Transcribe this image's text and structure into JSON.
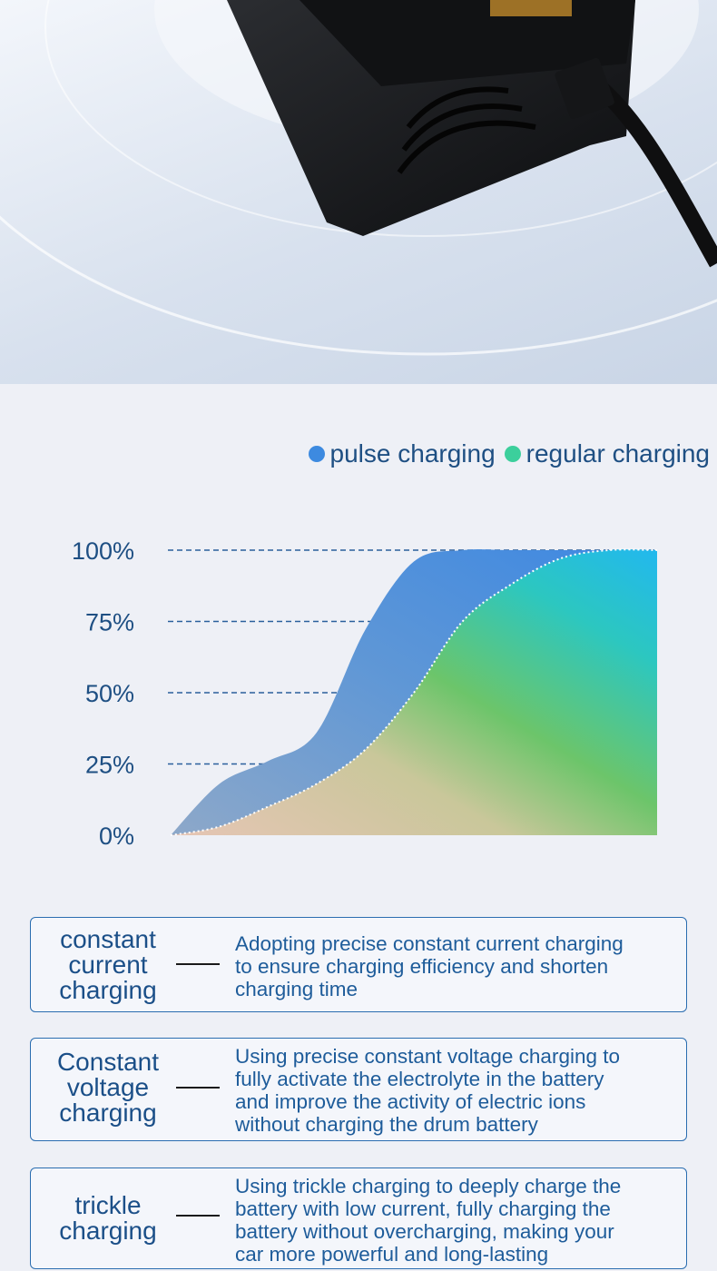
{
  "hero": {
    "image_label": "product-photo"
  },
  "legend": {
    "items": [
      {
        "label": "pulse charging",
        "color": "#3d8ae0"
      },
      {
        "label": "regular charging",
        "color": "#3ccf9c"
      }
    ]
  },
  "chart_data": {
    "type": "area",
    "title": "",
    "xlabel": "",
    "ylabel": "",
    "ylim": [
      0,
      100
    ],
    "yticks": [
      "0%",
      "25%",
      "50%",
      "75%",
      "100%"
    ],
    "tick_values": [
      0,
      25,
      50,
      75,
      100
    ],
    "grid": "dashed horizontal",
    "legend_position": "top-right",
    "x": [
      0,
      10,
      20,
      30,
      40,
      50,
      60,
      70,
      80,
      90,
      100
    ],
    "series": [
      {
        "name": "pulse charging",
        "values": [
          0,
          18,
          26,
          36,
          72,
          96,
          100,
          100,
          100,
          100,
          100
        ]
      },
      {
        "name": "regular charging",
        "values": [
          0,
          3,
          10,
          18,
          30,
          50,
          75,
          88,
          97,
          100,
          100
        ]
      }
    ]
  },
  "cards": [
    {
      "title_lines": [
        "constant",
        "current",
        "charging"
      ],
      "desc_lines": [
        "Adopting precise constant current charging",
        "to ensure charging efficiency and shorten",
        "charging time"
      ]
    },
    {
      "title_lines": [
        "Constant",
        "voltage",
        "charging"
      ],
      "desc_lines": [
        "Using precise constant voltage charging to",
        "fully activate the electrolyte in the battery",
        "and improve the activity of electric ions",
        "without charging the drum battery"
      ]
    },
    {
      "title_lines": [
        "trickle",
        "charging"
      ],
      "desc_lines": [
        "Using trickle charging to deeply charge the",
        "battery with low current, fully charging the",
        "battery without overcharging, making your",
        "car more powerful and long-lasting"
      ]
    }
  ]
}
